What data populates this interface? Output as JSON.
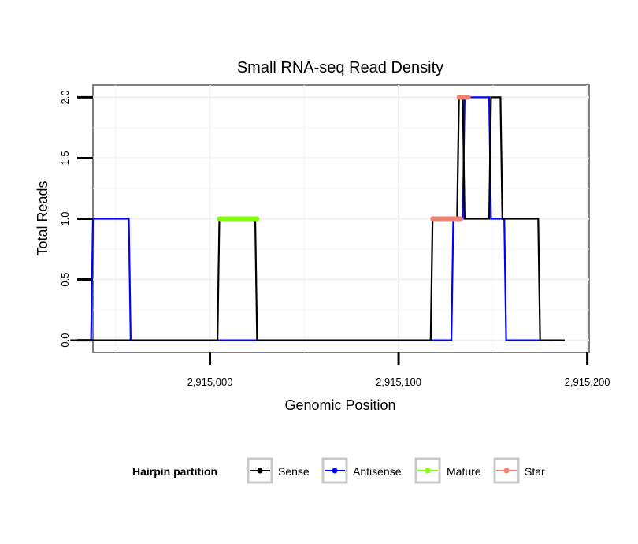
{
  "chart_data": {
    "type": "line",
    "title": "Small RNA-seq Read Density",
    "xlabel": "Genomic Position",
    "ylabel": "Total Reads",
    "xlim": [
      2914938,
      2915201
    ],
    "ylim": [
      -0.1,
      2.1
    ],
    "x_ticks": [
      2915000,
      2915100,
      2915200
    ],
    "x_tick_labels": [
      "2,915,000",
      "2,915,100",
      "2,915,200"
    ],
    "y_ticks": [
      0,
      0.5,
      1,
      1.5,
      2
    ],
    "y_tick_labels": [
      "0.0",
      "0.5",
      "1.0",
      "1.5",
      "2.0"
    ],
    "grid": true,
    "legend_title": "Hairpin partition",
    "legend_position": "bottom",
    "series": [
      {
        "name": "Sense",
        "color": "#000000",
        "style": "line",
        "x": [
          2914926,
          2915004,
          2915005,
          2915024,
          2915025,
          2915117,
          2915118,
          2915131,
          2915132,
          2915134,
          2915135,
          2915148,
          2915149,
          2915154,
          2915155,
          2915174,
          2915175,
          2915188
        ],
        "y": [
          0,
          0,
          1,
          1,
          0,
          0,
          1,
          1,
          2,
          2,
          1,
          1,
          2,
          2,
          1,
          1,
          0,
          0
        ]
      },
      {
        "name": "Antisense",
        "color": "#0000ff",
        "style": "line",
        "x": [
          2914937,
          2914938,
          2914957,
          2914958,
          2915128,
          2915129,
          2915134,
          2915135,
          2915148,
          2915149,
          2915156,
          2915157,
          2915182
        ],
        "y": [
          0,
          1,
          1,
          0,
          0,
          1,
          1,
          2,
          2,
          1,
          1,
          0,
          0
        ]
      },
      {
        "name": "Mature",
        "color": "#7fff00",
        "style": "thick",
        "x": [
          2915005,
          2915025
        ],
        "y": [
          1,
          1
        ]
      },
      {
        "name": "Star",
        "color": "#f08070",
        "style": "thick",
        "segments": [
          {
            "x": [
              2915118,
              2915133
            ],
            "y": [
              1,
              1
            ]
          },
          {
            "x": [
              2915132,
              2915137
            ],
            "y": [
              2,
              2
            ]
          }
        ]
      }
    ]
  }
}
